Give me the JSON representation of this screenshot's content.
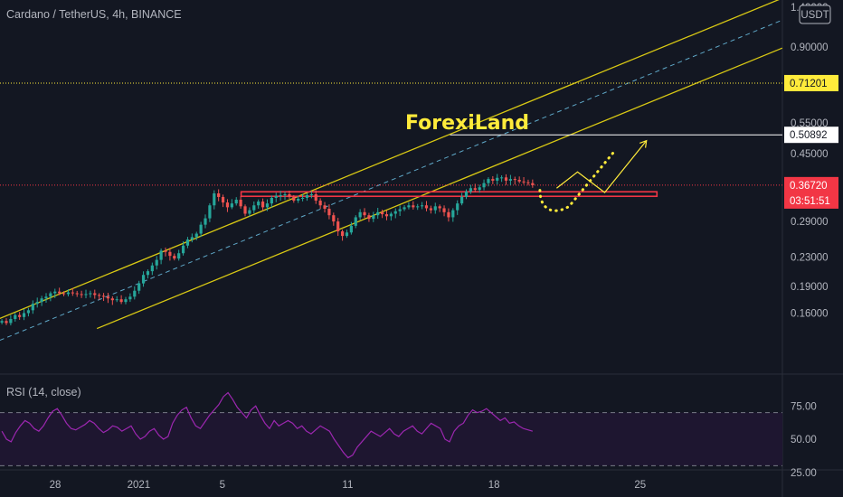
{
  "chart_data": [
    {
      "type": "candlestick",
      "title": "Cardano / TetherUS, 4h, BINANCE",
      "brand": "ForexiLand",
      "currency": "USDT",
      "scale": "log",
      "y_ticks": [
        "1.40000",
        "0.90000",
        "0.55000",
        "0.45000",
        "0.29000",
        "0.23000",
        "0.19000",
        "0.16000"
      ],
      "y_tick_values": [
        1.4,
        0.9,
        0.55,
        0.45,
        0.29,
        0.23,
        0.19,
        0.16
      ],
      "x_ticks": [
        "28",
        "2021",
        "5",
        "11",
        "18",
        "25"
      ],
      "x_tick_days": [
        28,
        32,
        36,
        42,
        49,
        56
      ],
      "price_tags": [
        {
          "label": "0.71201",
          "value": 0.71201,
          "bg": "#ffeb3b",
          "fg": "#131722"
        },
        {
          "label": "0.50892",
          "value": 0.50892,
          "bg": "#ffffff",
          "fg": "#131722"
        },
        {
          "label": "0.36720",
          "value": 0.3672,
          "bg": "#f23645",
          "fg": "#ffffff"
        },
        {
          "label": "03:51:51",
          "value": 0.3322,
          "bg": "#f23645",
          "fg": "#ffffff"
        }
      ],
      "levels": {
        "yellow_dotted": 0.71201,
        "white_target": 0.50892,
        "red_last": 0.3672,
        "red_zone": 0.3455
      },
      "colors": {
        "up": "#26a69a",
        "down": "#ef5350",
        "channel": "#d9c914",
        "midline": "#5fa8c8",
        "projection": "#ffeb3b",
        "rsi": "#9c27b0",
        "background": "#131722"
      },
      "closes": [
        0.152,
        0.15,
        0.154,
        0.158,
        0.156,
        0.16,
        0.163,
        0.17,
        0.172,
        0.176,
        0.178,
        0.182,
        0.184,
        0.182,
        0.181,
        0.183,
        0.182,
        0.181,
        0.18,
        0.181,
        0.182,
        0.18,
        0.179,
        0.178,
        0.176,
        0.174,
        0.175,
        0.172,
        0.175,
        0.178,
        0.185,
        0.194,
        0.205,
        0.21,
        0.218,
        0.226,
        0.24,
        0.238,
        0.232,
        0.228,
        0.236,
        0.248,
        0.258,
        0.262,
        0.268,
        0.284,
        0.296,
        0.322,
        0.348,
        0.34,
        0.328,
        0.318,
        0.326,
        0.334,
        0.32,
        0.305,
        0.312,
        0.322,
        0.33,
        0.318,
        0.326,
        0.338,
        0.342,
        0.344,
        0.346,
        0.34,
        0.332,
        0.336,
        0.338,
        0.344,
        0.346,
        0.332,
        0.322,
        0.315,
        0.302,
        0.29,
        0.272,
        0.264,
        0.27,
        0.282,
        0.298,
        0.308,
        0.302,
        0.295,
        0.302,
        0.308,
        0.304,
        0.3,
        0.305,
        0.31,
        0.314,
        0.318,
        0.322,
        0.318,
        0.32,
        0.322,
        0.316,
        0.312,
        0.32,
        0.316,
        0.308,
        0.298,
        0.312,
        0.326,
        0.34,
        0.352,
        0.36,
        0.356,
        0.362,
        0.372,
        0.382,
        0.378,
        0.385,
        0.386,
        0.378,
        0.382,
        0.38,
        0.376,
        0.374,
        0.372,
        0.367
      ],
      "projection": [
        {
          "day": 52.0,
          "price": 0.36
        },
        {
          "day": 53.0,
          "price": 0.4
        },
        {
          "day": 54.3,
          "price": 0.35
        },
        {
          "day": 56.3,
          "price": 0.49
        }
      ],
      "dotted_path": [
        {
          "day": 51.2,
          "price": 0.355
        },
        {
          "day": 51.2,
          "price": 0.315
        },
        {
          "day": 51.8,
          "price": 0.3
        },
        {
          "day": 52.6,
          "price": 0.32
        },
        {
          "day": 54.8,
          "price": 0.46
        }
      ],
      "rsi": {
        "label": "RSI (14, close)",
        "ticks": [
          "75.00",
          "50.00",
          "25.00"
        ],
        "tick_values": [
          75,
          50,
          25
        ],
        "overbought": 70,
        "oversold": 30,
        "values": [
          56,
          50,
          48,
          55,
          60,
          64,
          62,
          58,
          56,
          60,
          66,
          71,
          73,
          68,
          62,
          58,
          57,
          59,
          61,
          64,
          62,
          58,
          55,
          57,
          60,
          59,
          56,
          58,
          60,
          54,
          50,
          52,
          56,
          58,
          53,
          50,
          52,
          62,
          68,
          72,
          74,
          66,
          60,
          58,
          63,
          68,
          72,
          76,
          82,
          85,
          80,
          74,
          70,
          66,
          72,
          75,
          68,
          62,
          58,
          64,
          60,
          62,
          64,
          62,
          58,
          60,
          56,
          54,
          57,
          60,
          58,
          56,
          50,
          45,
          40,
          36,
          38,
          44,
          48,
          52,
          56,
          54,
          52,
          55,
          58,
          54,
          52,
          56,
          58,
          60,
          56,
          54,
          58,
          62,
          60,
          58,
          50,
          48,
          56,
          60,
          62,
          68,
          72,
          70,
          71,
          73,
          70,
          67,
          64,
          66,
          62,
          63,
          60,
          58,
          57,
          56
        ]
      }
    }
  ]
}
